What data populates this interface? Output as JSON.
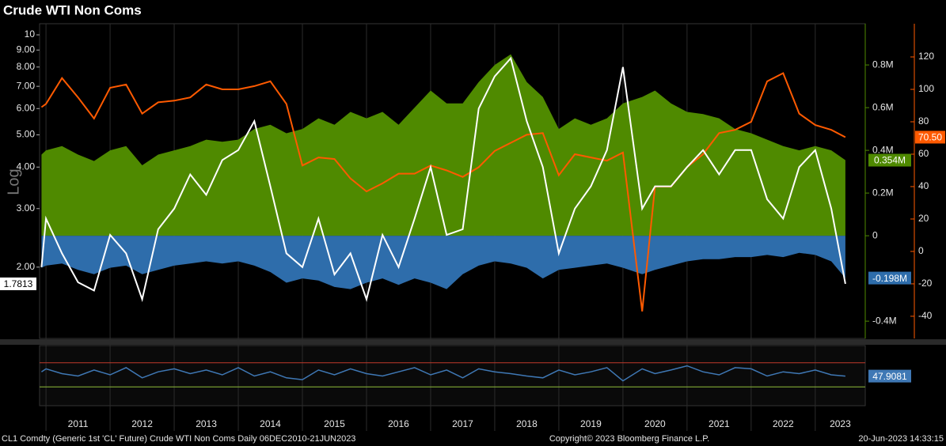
{
  "title": "Crude WTI Non Coms",
  "footer": {
    "left": "CL1 Comdty (Generic 1st 'CL' Future) Crude WTI Non Coms  Daily 06DEC2010-21JUN2023",
    "center": "Copyright© 2023 Bloomberg Finance L.P.",
    "right": "20-Jun-2023 14:33:15"
  },
  "chart_data": [
    {
      "type": "combo",
      "y_label": "Log",
      "x": [
        2010.93,
        2011,
        2011.25,
        2011.5,
        2011.75,
        2012,
        2012.25,
        2012.5,
        2012.75,
        2013,
        2013.25,
        2013.5,
        2013.75,
        2014,
        2014.25,
        2014.5,
        2014.75,
        2015,
        2015.25,
        2015.5,
        2015.75,
        2016,
        2016.25,
        2016.5,
        2016.75,
        2017,
        2017.25,
        2017.5,
        2017.75,
        2018,
        2018.25,
        2018.5,
        2018.75,
        2019,
        2019.25,
        2019.5,
        2019.75,
        2020,
        2020.3,
        2020.5,
        2020.75,
        2021,
        2021.25,
        2021.5,
        2021.75,
        2022,
        2022.25,
        2022.5,
        2022.75,
        2023,
        2023.25,
        2023.47
      ],
      "xlim": [
        2010.9,
        2023.78
      ],
      "xticks": [
        2011,
        2012,
        2013,
        2014,
        2015,
        2016,
        2017,
        2018,
        2019,
        2020,
        2021,
        2022,
        2023
      ],
      "yscale": "log",
      "ylim": [
        1.22,
        10.8
      ],
      "yticks": [
        10,
        {
          "value": 9,
          "label": "9.00"
        },
        {
          "value": 8,
          "label": "8.00"
        },
        {
          "value": 7,
          "label": "7.00"
        },
        {
          "value": 6,
          "label": "6.00"
        },
        {
          "value": 5,
          "label": "5.00"
        },
        {
          "value": 4,
          "label": "4.00"
        },
        {
          "value": 3,
          "label": "3.00"
        },
        {
          "value": 2,
          "label": "2.00"
        }
      ],
      "y2lim": [
        -0.481,
        0.993
      ],
      "y2ticks": [
        {
          "value": -0.4,
          "label": "-0.4M"
        },
        0,
        {
          "value": 0.2,
          "label": "0.2M"
        },
        {
          "value": 0.4,
          "label": "0.4M"
        },
        {
          "value": 0.6,
          "label": "0.6M"
        },
        {
          "value": 0.8,
          "label": "0.8M"
        }
      ],
      "y3lim": [
        -53.7,
        140.5
      ],
      "y3ticks": [
        -40,
        -20,
        0,
        20,
        40,
        60,
        80,
        100,
        120
      ],
      "series": [
        {
          "kind": "area",
          "axis": "y2",
          "color": "#4f8a00",
          "last_label": "0.354M",
          "values": [
            0.38,
            0.4,
            0.42,
            0.38,
            0.35,
            0.4,
            0.42,
            0.33,
            0.38,
            0.4,
            0.42,
            0.45,
            0.44,
            0.45,
            0.5,
            0.52,
            0.48,
            0.5,
            0.55,
            0.52,
            0.58,
            0.55,
            0.58,
            0.52,
            0.6,
            0.68,
            0.62,
            0.62,
            0.72,
            0.8,
            0.85,
            0.72,
            0.65,
            0.5,
            0.55,
            0.52,
            0.55,
            0.62,
            0.65,
            0.68,
            0.62,
            0.58,
            0.57,
            0.55,
            0.5,
            0.48,
            0.45,
            0.42,
            0.4,
            0.42,
            0.4,
            0.354
          ]
        },
        {
          "kind": "area",
          "axis": "y2",
          "color": "#2e6dab",
          "last_label": "-0.198M",
          "values": [
            -0.15,
            -0.14,
            -0.13,
            -0.16,
            -0.18,
            -0.15,
            -0.14,
            -0.18,
            -0.16,
            -0.14,
            -0.13,
            -0.12,
            -0.13,
            -0.12,
            -0.14,
            -0.17,
            -0.22,
            -0.2,
            -0.21,
            -0.24,
            -0.25,
            -0.22,
            -0.2,
            -0.23,
            -0.2,
            -0.22,
            -0.25,
            -0.18,
            -0.14,
            -0.12,
            -0.13,
            -0.15,
            -0.2,
            -0.16,
            -0.15,
            -0.14,
            -0.13,
            -0.15,
            -0.18,
            -0.16,
            -0.14,
            -0.12,
            -0.11,
            -0.11,
            -0.1,
            -0.1,
            -0.09,
            -0.1,
            -0.08,
            -0.09,
            -0.12,
            -0.198
          ]
        },
        {
          "kind": "line",
          "axis": "y3",
          "color": "#ff5a00",
          "last_label": "70.50",
          "values": [
            89,
            91,
            107,
            95,
            82,
            101,
            103,
            85,
            92,
            93,
            95,
            103,
            100,
            100,
            102,
            105,
            91,
            53,
            58,
            57,
            45,
            37,
            42,
            48,
            48,
            53,
            50,
            46,
            52,
            62,
            67,
            72,
            73,
            47,
            60,
            58,
            56,
            61,
            -37,
            40,
            40,
            52,
            60,
            73,
            75,
            80,
            105,
            110,
            85,
            78,
            75,
            70.5
          ]
        },
        {
          "kind": "line",
          "axis": "y",
          "color": "#ffffff",
          "values": [
            2.0,
            2.8,
            2.2,
            1.8,
            1.7,
            2.5,
            2.2,
            1.6,
            2.6,
            3.0,
            3.8,
            3.3,
            4.2,
            4.5,
            5.5,
            3.5,
            2.2,
            2.0,
            2.8,
            1.9,
            2.2,
            1.6,
            2.5,
            2.0,
            2.8,
            4.0,
            2.5,
            2.6,
            6.0,
            7.5,
            8.5,
            5.5,
            4.0,
            2.2,
            3.0,
            3.5,
            4.5,
            8.0,
            3.0,
            3.5,
            3.5,
            4.0,
            4.5,
            3.8,
            4.5,
            4.5,
            3.2,
            2.8,
            4.0,
            4.5,
            3.0,
            1.7813
          ]
        }
      ]
    },
    {
      "type": "line",
      "ylim": [
        0,
        100
      ],
      "hlines": [
        {
          "value": 70,
          "color": "#c0392b"
        },
        {
          "value": 30,
          "color": "#8fbc3a"
        }
      ],
      "series": [
        {
          "color": "#3f78b5",
          "values": [
            55,
            60,
            52,
            48,
            58,
            50,
            62,
            45,
            55,
            60,
            52,
            58,
            50,
            62,
            48,
            55,
            45,
            42,
            58,
            50,
            60,
            52,
            48,
            55,
            62,
            50,
            58,
            45,
            60,
            55,
            52,
            48,
            45,
            58,
            50,
            55,
            62,
            40,
            60,
            52,
            58,
            65,
            55,
            50,
            62,
            60,
            48,
            55,
            52,
            58,
            50,
            47.9081
          ]
        }
      ]
    }
  ]
}
